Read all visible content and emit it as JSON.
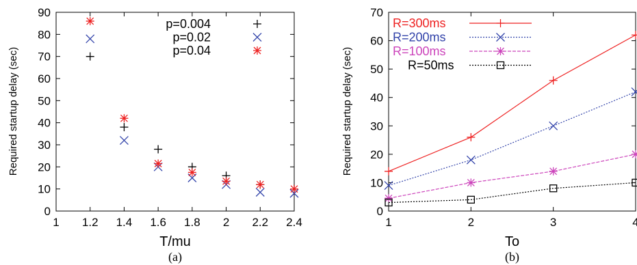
{
  "chart_data": [
    {
      "type": "scatter",
      "panel_label": "(a)",
      "xlabel": "T/mu",
      "ylabel": "Required startup delay (sec)",
      "xlim": [
        1,
        2.4
      ],
      "ylim": [
        0,
        90
      ],
      "xticks": [
        "1",
        "1.2",
        "1.4",
        "1.6",
        "1.8",
        "2",
        "2.2",
        "2.4"
      ],
      "yticks": [
        "0",
        "10",
        "20",
        "30",
        "40",
        "50",
        "60",
        "70",
        "80",
        "90"
      ],
      "grid": false,
      "legend_position": "top-right",
      "series": [
        {
          "name": "p=0.004",
          "color": "#000000",
          "marker": "plus",
          "x": [
            1.2,
            1.4,
            1.6,
            1.8,
            2.0,
            2.2,
            2.4
          ],
          "y": [
            70,
            38,
            28,
            20,
            16,
            12,
            10
          ]
        },
        {
          "name": "p=0.02",
          "color": "#3344aa",
          "marker": "cross",
          "x": [
            1.2,
            1.4,
            1.6,
            1.8,
            2.0,
            2.2,
            2.4
          ],
          "y": [
            78,
            32,
            20,
            15,
            12,
            8.5,
            8
          ]
        },
        {
          "name": "p=0.04",
          "color": "#ee2222",
          "marker": "star",
          "x": [
            1.2,
            1.4,
            1.6,
            1.8,
            2.0,
            2.2,
            2.4
          ],
          "y": [
            86,
            42,
            21.5,
            17.5,
            13.5,
            12,
            10
          ]
        }
      ]
    },
    {
      "type": "line",
      "panel_label": "(b)",
      "xlabel": "To",
      "ylabel": "Required startup delay (sec)",
      "xlim": [
        1,
        4
      ],
      "ylim": [
        0,
        70
      ],
      "xticks": [
        "1",
        "2",
        "3",
        "4"
      ],
      "yticks": [
        "0",
        "10",
        "20",
        "30",
        "40",
        "50",
        "60",
        "70"
      ],
      "grid": false,
      "legend_position": "top-left",
      "series": [
        {
          "name": "R=300ms",
          "color": "#ee2222",
          "marker": "plus",
          "dash": "",
          "x": [
            1,
            2,
            3,
            4
          ],
          "y": [
            14,
            26,
            46,
            62
          ]
        },
        {
          "name": "R=200ms",
          "color": "#3344aa",
          "marker": "cross",
          "dash": "2,2",
          "x": [
            1,
            2,
            3,
            4
          ],
          "y": [
            9,
            18,
            30,
            42
          ]
        },
        {
          "name": "R=100ms",
          "color": "#cc44bb",
          "marker": "star",
          "dash": "5,2",
          "x": [
            1,
            2,
            3,
            4
          ],
          "y": [
            4.5,
            10,
            14,
            20
          ]
        },
        {
          "name": "R=50ms",
          "color": "#000000",
          "marker": "square",
          "dash": "2,2",
          "x": [
            1,
            2,
            3,
            4
          ],
          "y": [
            3,
            4,
            8,
            10
          ]
        }
      ]
    }
  ]
}
